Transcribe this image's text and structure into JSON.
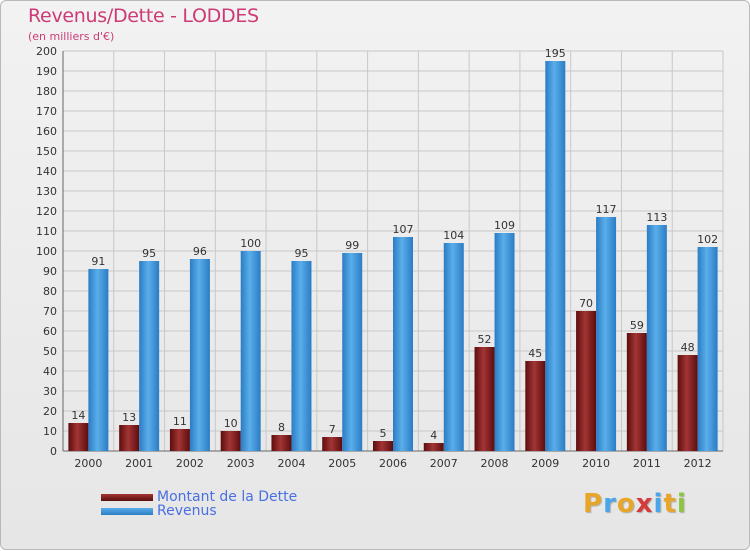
{
  "title": "Revenus/Dette - LODDES",
  "subtitle": "(en milliers d'€)",
  "colors": {
    "title": "#cd3b76",
    "dette_dark": "#5c0d0d",
    "dette_light": "#a33535",
    "revenus_dark": "#2b7cc4",
    "revenus_light": "#5aaeea",
    "grid": "#c8c8c8",
    "axis_text": "#333333",
    "legend_text": "#4a6fe0"
  },
  "chart_data": {
    "type": "bar",
    "categories": [
      "2000",
      "2001",
      "2002",
      "2003",
      "2004",
      "2005",
      "2006",
      "2007",
      "2008",
      "2009",
      "2010",
      "2011",
      "2012"
    ],
    "series": [
      {
        "name": "Montant de la Dette",
        "values": [
          14,
          13,
          11,
          10,
          8,
          7,
          5,
          4,
          52,
          45,
          70,
          59,
          48
        ]
      },
      {
        "name": "Revenus",
        "values": [
          91,
          95,
          96,
          100,
          95,
          99,
          107,
          104,
          109,
          195,
          117,
          113,
          102
        ]
      }
    ],
    "yticks": [
      0,
      10,
      20,
      30,
      40,
      50,
      60,
      70,
      80,
      90,
      100,
      110,
      120,
      130,
      140,
      150,
      160,
      170,
      180,
      190,
      200
    ],
    "ylim": [
      0,
      200
    ],
    "grid": true,
    "legend": "bottom-left"
  },
  "legend": [
    {
      "label": "Montant de la Dette"
    },
    {
      "label": "Revenus"
    }
  ],
  "logo": {
    "letters": [
      "P",
      "r",
      "o",
      "x",
      "i",
      "t",
      "i"
    ],
    "colors": [
      "#e8a628",
      "#4aa6e8",
      "#e8a628",
      "#d63b3b",
      "#4aa6e8",
      "#e8a628",
      "#8cc63f"
    ]
  }
}
